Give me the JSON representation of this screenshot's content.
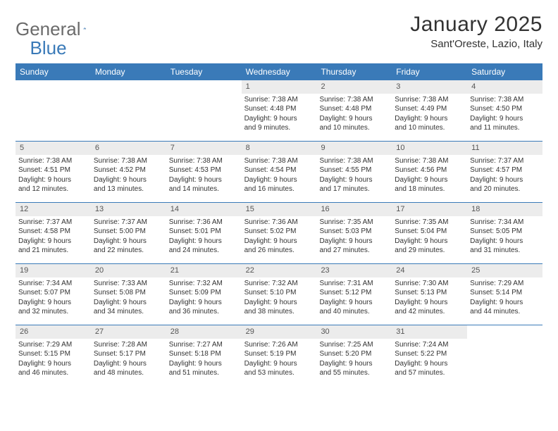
{
  "brand": {
    "word1": "General",
    "word2": "Blue"
  },
  "title": "January 2025",
  "location": "Sant'Oreste, Lazio, Italy",
  "colors": {
    "header_bg": "#3a7ab8",
    "header_text": "#ffffff",
    "daynum_bg": "#ececec",
    "body_text": "#333333",
    "logo_grey": "#6b6b6b",
    "logo_blue": "#3a7ab8",
    "divider": "#3a7ab8",
    "page_bg": "#ffffff"
  },
  "typography": {
    "title_fontsize": 30,
    "location_fontsize": 15,
    "dow_fontsize": 12,
    "daynum_fontsize": 11,
    "body_fontsize": 10,
    "font_family": "Arial"
  },
  "days_of_week": [
    "Sunday",
    "Monday",
    "Tuesday",
    "Wednesday",
    "Thursday",
    "Friday",
    "Saturday"
  ],
  "weeks": [
    [
      null,
      null,
      null,
      {
        "n": "1",
        "sunrise": "7:38 AM",
        "sunset": "4:48 PM",
        "dl1": "Daylight: 9 hours",
        "dl2": "and 9 minutes."
      },
      {
        "n": "2",
        "sunrise": "7:38 AM",
        "sunset": "4:48 PM",
        "dl1": "Daylight: 9 hours",
        "dl2": "and 10 minutes."
      },
      {
        "n": "3",
        "sunrise": "7:38 AM",
        "sunset": "4:49 PM",
        "dl1": "Daylight: 9 hours",
        "dl2": "and 10 minutes."
      },
      {
        "n": "4",
        "sunrise": "7:38 AM",
        "sunset": "4:50 PM",
        "dl1": "Daylight: 9 hours",
        "dl2": "and 11 minutes."
      }
    ],
    [
      {
        "n": "5",
        "sunrise": "7:38 AM",
        "sunset": "4:51 PM",
        "dl1": "Daylight: 9 hours",
        "dl2": "and 12 minutes."
      },
      {
        "n": "6",
        "sunrise": "7:38 AM",
        "sunset": "4:52 PM",
        "dl1": "Daylight: 9 hours",
        "dl2": "and 13 minutes."
      },
      {
        "n": "7",
        "sunrise": "7:38 AM",
        "sunset": "4:53 PM",
        "dl1": "Daylight: 9 hours",
        "dl2": "and 14 minutes."
      },
      {
        "n": "8",
        "sunrise": "7:38 AM",
        "sunset": "4:54 PM",
        "dl1": "Daylight: 9 hours",
        "dl2": "and 16 minutes."
      },
      {
        "n": "9",
        "sunrise": "7:38 AM",
        "sunset": "4:55 PM",
        "dl1": "Daylight: 9 hours",
        "dl2": "and 17 minutes."
      },
      {
        "n": "10",
        "sunrise": "7:38 AM",
        "sunset": "4:56 PM",
        "dl1": "Daylight: 9 hours",
        "dl2": "and 18 minutes."
      },
      {
        "n": "11",
        "sunrise": "7:37 AM",
        "sunset": "4:57 PM",
        "dl1": "Daylight: 9 hours",
        "dl2": "and 20 minutes."
      }
    ],
    [
      {
        "n": "12",
        "sunrise": "7:37 AM",
        "sunset": "4:58 PM",
        "dl1": "Daylight: 9 hours",
        "dl2": "and 21 minutes."
      },
      {
        "n": "13",
        "sunrise": "7:37 AM",
        "sunset": "5:00 PM",
        "dl1": "Daylight: 9 hours",
        "dl2": "and 22 minutes."
      },
      {
        "n": "14",
        "sunrise": "7:36 AM",
        "sunset": "5:01 PM",
        "dl1": "Daylight: 9 hours",
        "dl2": "and 24 minutes."
      },
      {
        "n": "15",
        "sunrise": "7:36 AM",
        "sunset": "5:02 PM",
        "dl1": "Daylight: 9 hours",
        "dl2": "and 26 minutes."
      },
      {
        "n": "16",
        "sunrise": "7:35 AM",
        "sunset": "5:03 PM",
        "dl1": "Daylight: 9 hours",
        "dl2": "and 27 minutes."
      },
      {
        "n": "17",
        "sunrise": "7:35 AM",
        "sunset": "5:04 PM",
        "dl1": "Daylight: 9 hours",
        "dl2": "and 29 minutes."
      },
      {
        "n": "18",
        "sunrise": "7:34 AM",
        "sunset": "5:05 PM",
        "dl1": "Daylight: 9 hours",
        "dl2": "and 31 minutes."
      }
    ],
    [
      {
        "n": "19",
        "sunrise": "7:34 AM",
        "sunset": "5:07 PM",
        "dl1": "Daylight: 9 hours",
        "dl2": "and 32 minutes."
      },
      {
        "n": "20",
        "sunrise": "7:33 AM",
        "sunset": "5:08 PM",
        "dl1": "Daylight: 9 hours",
        "dl2": "and 34 minutes."
      },
      {
        "n": "21",
        "sunrise": "7:32 AM",
        "sunset": "5:09 PM",
        "dl1": "Daylight: 9 hours",
        "dl2": "and 36 minutes."
      },
      {
        "n": "22",
        "sunrise": "7:32 AM",
        "sunset": "5:10 PM",
        "dl1": "Daylight: 9 hours",
        "dl2": "and 38 minutes."
      },
      {
        "n": "23",
        "sunrise": "7:31 AM",
        "sunset": "5:12 PM",
        "dl1": "Daylight: 9 hours",
        "dl2": "and 40 minutes."
      },
      {
        "n": "24",
        "sunrise": "7:30 AM",
        "sunset": "5:13 PM",
        "dl1": "Daylight: 9 hours",
        "dl2": "and 42 minutes."
      },
      {
        "n": "25",
        "sunrise": "7:29 AM",
        "sunset": "5:14 PM",
        "dl1": "Daylight: 9 hours",
        "dl2": "and 44 minutes."
      }
    ],
    [
      {
        "n": "26",
        "sunrise": "7:29 AM",
        "sunset": "5:15 PM",
        "dl1": "Daylight: 9 hours",
        "dl2": "and 46 minutes."
      },
      {
        "n": "27",
        "sunrise": "7:28 AM",
        "sunset": "5:17 PM",
        "dl1": "Daylight: 9 hours",
        "dl2": "and 48 minutes."
      },
      {
        "n": "28",
        "sunrise": "7:27 AM",
        "sunset": "5:18 PM",
        "dl1": "Daylight: 9 hours",
        "dl2": "and 51 minutes."
      },
      {
        "n": "29",
        "sunrise": "7:26 AM",
        "sunset": "5:19 PM",
        "dl1": "Daylight: 9 hours",
        "dl2": "and 53 minutes."
      },
      {
        "n": "30",
        "sunrise": "7:25 AM",
        "sunset": "5:20 PM",
        "dl1": "Daylight: 9 hours",
        "dl2": "and 55 minutes."
      },
      {
        "n": "31",
        "sunrise": "7:24 AM",
        "sunset": "5:22 PM",
        "dl1": "Daylight: 9 hours",
        "dl2": "and 57 minutes."
      },
      null
    ]
  ],
  "labels": {
    "sunrise": "Sunrise:",
    "sunset": "Sunset:"
  }
}
